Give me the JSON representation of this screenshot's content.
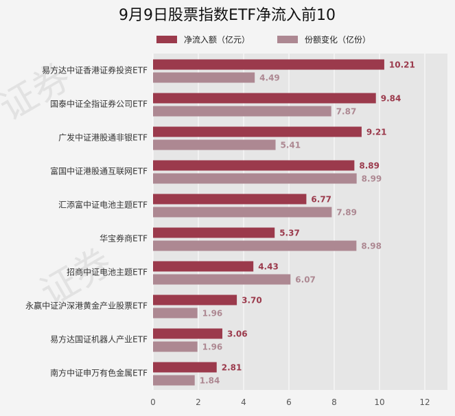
{
  "chart_data": {
    "type": "bar",
    "orientation": "horizontal",
    "title": "9月9日股票指数ETF净流入前10",
    "categories": [
      "易方达中证香港证券投资ETF",
      "国泰中证全指证券公司ETF",
      "广发中证港股通非银ETF",
      "富国中证港股通互联网ETF",
      "汇添富中证电池主题ETF",
      "华宝券商ETF",
      "招商中证电池主题ETF",
      "永赢中证沪深港黄金产业股票ETF",
      "易方达国证机器人产业ETF",
      "南方中证申万有色金属ETF"
    ],
    "series": [
      {
        "name": "净流入额（亿元）",
        "color": "#9b3a4c",
        "values": [
          10.21,
          9.84,
          9.21,
          8.89,
          6.77,
          5.37,
          4.43,
          3.7,
          3.06,
          2.81
        ],
        "labels": [
          "10.21",
          "9.84",
          "9.21",
          "8.89",
          "6.77",
          "5.37",
          "4.43",
          "3.70",
          "3.06",
          "2.81"
        ]
      },
      {
        "name": "份额变化（亿份）",
        "color": "#ad8892",
        "values": [
          4.49,
          7.87,
          5.41,
          8.99,
          7.89,
          8.98,
          6.07,
          1.96,
          1.96,
          1.84
        ],
        "labels": [
          "4.49",
          "7.87",
          "5.41",
          "8.99",
          "7.89",
          "8.98",
          "6.07",
          "1.96",
          "1.96",
          "1.84"
        ]
      }
    ],
    "xlim": [
      0,
      13
    ],
    "xticks": [
      "0",
      "2",
      "4",
      "6",
      "8",
      "10",
      "12"
    ],
    "xlabel": "",
    "ylabel": "",
    "grid": true,
    "legend_position": "top"
  }
}
